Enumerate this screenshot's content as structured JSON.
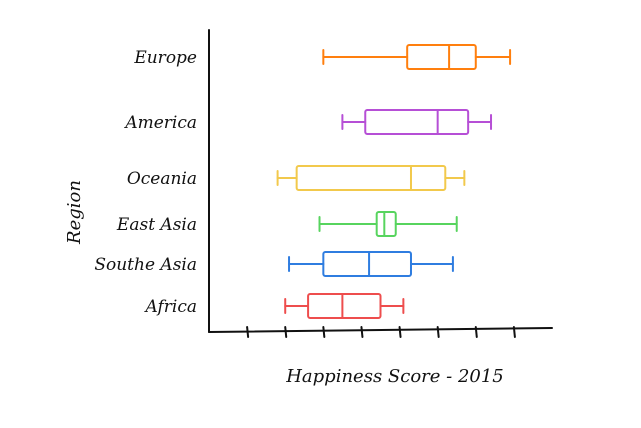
{
  "chart_data": {
    "type": "box",
    "orientation": "horizontal",
    "xlabel": "Happiness Score - 2015",
    "ylabel": "Region",
    "xlim": [
      0,
      9
    ],
    "x_ticks": [
      1,
      2,
      3,
      4,
      5,
      6,
      7,
      8
    ],
    "tick_labels_shown": false,
    "grid": false,
    "legend": "none",
    "categories": [
      "Europe",
      "America",
      "Oceania",
      "East Asia",
      "Southe Asia",
      "Africa"
    ],
    "series": [
      {
        "color": "#ff7f0e",
        "min": 3.0,
        "q1": 5.2,
        "median": 6.3,
        "q3": 7.0,
        "max": 7.9
      },
      {
        "color": "#b64fd6",
        "min": 3.5,
        "q1": 4.1,
        "median": 6.0,
        "q3": 6.8,
        "max": 7.4
      },
      {
        "color": "#f2c94c",
        "min": 1.8,
        "q1": 2.3,
        "median": 5.3,
        "q3": 6.2,
        "max": 6.7
      },
      {
        "color": "#57d45e",
        "min": 2.9,
        "q1": 4.4,
        "median": 4.6,
        "q3": 4.9,
        "max": 6.5
      },
      {
        "color": "#2f7de0",
        "min": 2.1,
        "q1": 3.0,
        "median": 4.2,
        "q3": 5.3,
        "max": 6.4
      },
      {
        "color": "#ee4d4d",
        "min": 2.0,
        "q1": 2.6,
        "median": 3.5,
        "q3": 4.5,
        "max": 5.1
      }
    ]
  }
}
